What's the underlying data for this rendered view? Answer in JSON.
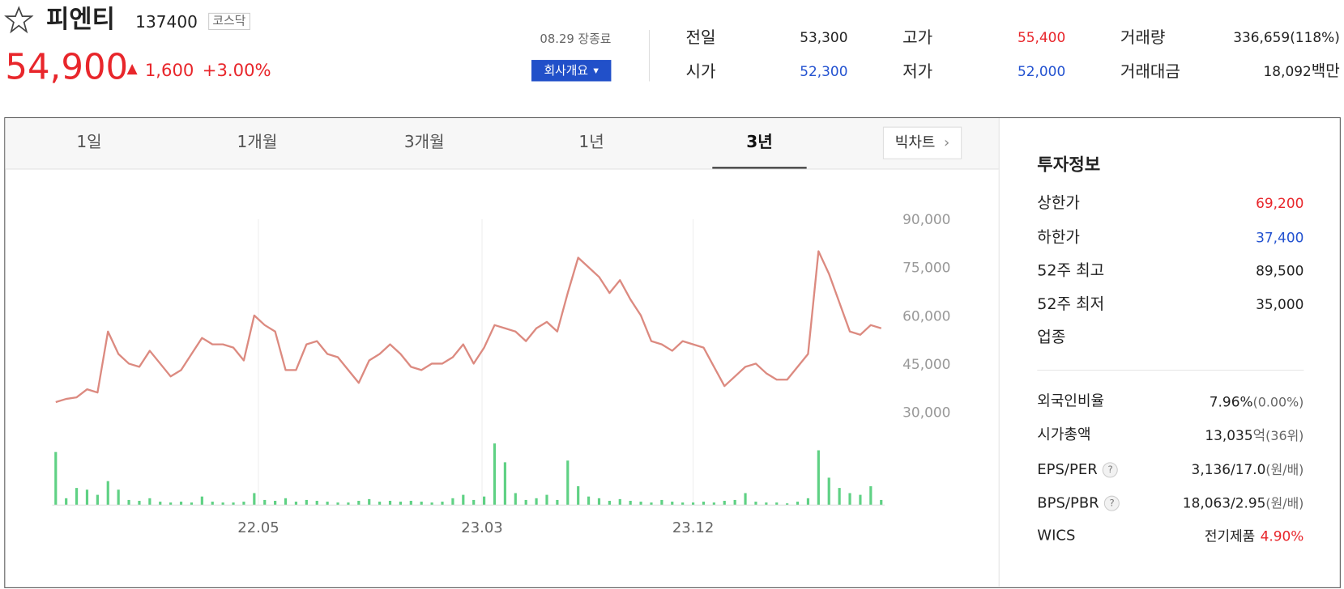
{
  "header": {
    "name": "피엔티",
    "code": "137400",
    "market": "코스닥",
    "price": "54,900",
    "change": "1,600",
    "rate": "+3.00%",
    "time": "08.29 장종료",
    "button": "회사개요",
    "quotes": [
      {
        "label": "전일",
        "value": "53,300"
      },
      {
        "label": "시가",
        "value": "52,300"
      },
      {
        "label": "고가",
        "value": "55,400"
      },
      {
        "label": "저가",
        "value": "52,000"
      },
      {
        "label": "거래량",
        "value": "336,659(118%)"
      },
      {
        "label": "거래대금",
        "value": "18,092",
        "unit": "백만"
      }
    ]
  },
  "tabs": [
    "1일",
    "1개월",
    "3개월",
    "1년",
    "3년"
  ],
  "big_chart": "빅차트",
  "chart": {
    "type": "line",
    "xlim": [
      0,
      79
    ],
    "ylim": [
      30000,
      90000
    ],
    "y2lim": [
      0,
      80
    ],
    "yticks": [
      {
        "value": 90000,
        "label": "90,000"
      },
      {
        "value": 75000,
        "label": "75,000"
      },
      {
        "value": 60000,
        "label": "60,000"
      },
      {
        "value": 45000,
        "label": "45,000"
      },
      {
        "value": 30000,
        "label": "30,000"
      }
    ],
    "xticks": [
      {
        "value": 19.4,
        "label": "22.05"
      },
      {
        "value": 40.8,
        "label": "23.03"
      },
      {
        "value": 61,
        "label": "23.12"
      }
    ],
    "series": [
      {
        "color": "#dc8a80",
        "values": [
          33000,
          34000,
          34500,
          37000,
          36000,
          55000,
          48000,
          45000,
          44000,
          49000,
          45000,
          41000,
          43000,
          48000,
          53000,
          51000,
          51000,
          50000,
          46000,
          60000,
          57000,
          55000,
          43000,
          43000,
          51000,
          52000,
          48000,
          47000,
          43000,
          39000,
          46000,
          48000,
          51000,
          48000,
          44000,
          43000,
          45000,
          45000,
          47000,
          51000,
          45000,
          50000,
          57000,
          56000,
          55000,
          52000,
          56000,
          58000,
          55000,
          67000,
          78000,
          75000,
          72000,
          67000,
          71000,
          65000,
          60000,
          52000,
          51000,
          49000,
          52000,
          51000,
          50000,
          44000,
          38000,
          41000,
          44000,
          45000,
          42000,
          40000,
          40000,
          44000,
          48000,
          80000,
          73000,
          64000,
          55000,
          54000,
          57000,
          56000
        ]
      },
      {
        "color": "#5fd184",
        "axis": "y2",
        "values": [
          62,
          8,
          20,
          18,
          12,
          28,
          18,
          6,
          5,
          8,
          4,
          3,
          4,
          3,
          10,
          4,
          3,
          3,
          4,
          14,
          6,
          5,
          8,
          4,
          6,
          5,
          4,
          3,
          3,
          5,
          7,
          4,
          5,
          4,
          5,
          4,
          3,
          4,
          8,
          12,
          6,
          10,
          72,
          50,
          14,
          6,
          8,
          12,
          6,
          52,
          22,
          10,
          8,
          5,
          7,
          5,
          4,
          3,
          6,
          4,
          3,
          3,
          4,
          3,
          5,
          6,
          14,
          4,
          3,
          3,
          2,
          4,
          8,
          64,
          32,
          20,
          14,
          12,
          22,
          6
        ]
      }
    ]
  },
  "invest": {
    "title": "투자정보",
    "rows": [
      {
        "label": "상한가",
        "value": "69,200"
      },
      {
        "label": "하한가",
        "value": "37,400"
      },
      {
        "label": "52주 최고",
        "value": "89,500"
      },
      {
        "label": "52주 최저",
        "value": "35,000"
      },
      {
        "label": "업종"
      }
    ],
    "rows2": [
      {
        "label": "외국인비율",
        "value": "7.96%",
        "note": "(0.00%)"
      },
      {
        "label": "시가총액",
        "value": "13,035",
        "unit": "억",
        "note": "(36위)"
      },
      {
        "label": "EPS/PER",
        "value": "3,136/17.0",
        "note": "(원/배)"
      },
      {
        "label": "BPS/PBR",
        "value": "18,063/2.95",
        "note": "(원/배)"
      },
      {
        "label": "WICS",
        "value": "전기제품",
        "note": "4.90%"
      }
    ]
  }
}
